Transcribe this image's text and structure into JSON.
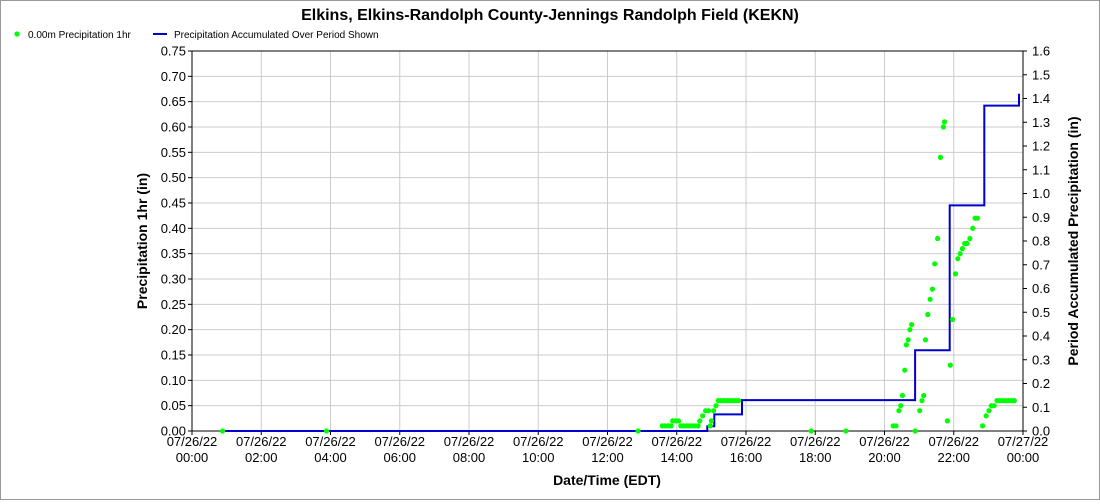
{
  "chart_data": {
    "type": "line",
    "title": "Elkins, Elkins-Randolph County-Jennings Randolph Field (KEKN)",
    "xlabel": "Date/Time (EDT)",
    "ylabel": "Precipitation 1hr (in)",
    "y2label": "Period Accumulated Precipitation (in)",
    "xlim": [
      "07/26/22 00:00",
      "07/27/22 00:00"
    ],
    "ylim": [
      0,
      0.75
    ],
    "y2lim": [
      0,
      1.6
    ],
    "grid": true,
    "legend_position": "top-left",
    "x_ticks": [
      {
        "date": "07/26/22",
        "time": "00:00"
      },
      {
        "date": "07/26/22",
        "time": "02:00"
      },
      {
        "date": "07/26/22",
        "time": "04:00"
      },
      {
        "date": "07/26/22",
        "time": "06:00"
      },
      {
        "date": "07/26/22",
        "time": "08:00"
      },
      {
        "date": "07/26/22",
        "time": "10:00"
      },
      {
        "date": "07/26/22",
        "time": "12:00"
      },
      {
        "date": "07/26/22",
        "time": "14:00"
      },
      {
        "date": "07/26/22",
        "time": "16:00"
      },
      {
        "date": "07/26/22",
        "time": "18:00"
      },
      {
        "date": "07/26/22",
        "time": "20:00"
      },
      {
        "date": "07/26/22",
        "time": "22:00"
      },
      {
        "date": "07/27/22",
        "time": "00:00"
      }
    ],
    "y_ticks": [
      "0.00",
      "0.05",
      "0.10",
      "0.15",
      "0.20",
      "0.25",
      "0.30",
      "0.35",
      "0.40",
      "0.45",
      "0.50",
      "0.55",
      "0.60",
      "0.65",
      "0.70",
      "0.75"
    ],
    "y2_ticks": [
      "0.0",
      "0.1",
      "0.2",
      "0.3",
      "0.4",
      "0.5",
      "0.6",
      "0.7",
      "0.8",
      "0.9",
      "1.0",
      "1.1",
      "1.2",
      "1.3",
      "1.4",
      "1.5",
      "1.6"
    ],
    "series": [
      {
        "name": "0.00m Precipitation 1hr",
        "kind": "scatter",
        "axis": "left",
        "color": "#00ff00",
        "points": [
          [
            "07/26/22 00:53",
            0.0
          ],
          [
            "07/26/22 03:53",
            0.0
          ],
          [
            "07/26/22 12:53",
            0.0
          ],
          [
            "07/26/22 13:35",
            0.01
          ],
          [
            "07/26/22 13:40",
            0.01
          ],
          [
            "07/26/22 13:45",
            0.01
          ],
          [
            "07/26/22 13:50",
            0.01
          ],
          [
            "07/26/22 13:53",
            0.02
          ],
          [
            "07/26/22 13:58",
            0.02
          ],
          [
            "07/26/22 14:03",
            0.02
          ],
          [
            "07/26/22 14:07",
            0.01
          ],
          [
            "07/26/22 14:12",
            0.01
          ],
          [
            "07/26/22 14:17",
            0.01
          ],
          [
            "07/26/22 14:22",
            0.01
          ],
          [
            "07/26/22 14:27",
            0.01
          ],
          [
            "07/26/22 14:32",
            0.01
          ],
          [
            "07/26/22 14:37",
            0.01
          ],
          [
            "07/26/22 14:40",
            0.02
          ],
          [
            "07/26/22 14:45",
            0.03
          ],
          [
            "07/26/22 14:50",
            0.04
          ],
          [
            "07/26/22 14:55",
            0.04
          ],
          [
            "07/26/22 14:58",
            0.01
          ],
          [
            "07/26/22 15:00",
            0.02
          ],
          [
            "07/26/22 15:04",
            0.04
          ],
          [
            "07/26/22 15:08",
            0.05
          ],
          [
            "07/26/22 15:12",
            0.06
          ],
          [
            "07/26/22 15:17",
            0.06
          ],
          [
            "07/26/22 15:22",
            0.06
          ],
          [
            "07/26/22 15:27",
            0.06
          ],
          [
            "07/26/22 15:32",
            0.06
          ],
          [
            "07/26/22 15:37",
            0.06
          ],
          [
            "07/26/22 15:42",
            0.06
          ],
          [
            "07/26/22 15:47",
            0.06
          ],
          [
            "07/26/22 17:53",
            0.0
          ],
          [
            "07/26/22 18:53",
            0.0
          ],
          [
            "07/26/22 20:15",
            0.01
          ],
          [
            "07/26/22 20:20",
            0.01
          ],
          [
            "07/26/22 20:25",
            0.04
          ],
          [
            "07/26/22 20:28",
            0.05
          ],
          [
            "07/26/22 20:31",
            0.07
          ],
          [
            "07/26/22 20:35",
            0.12
          ],
          [
            "07/26/22 20:38",
            0.17
          ],
          [
            "07/26/22 20:41",
            0.18
          ],
          [
            "07/26/22 20:44",
            0.2
          ],
          [
            "07/26/22 20:47",
            0.21
          ],
          [
            "07/26/22 20:53",
            0.0
          ],
          [
            "07/26/22 21:01",
            0.04
          ],
          [
            "07/26/22 21:05",
            0.06
          ],
          [
            "07/26/22 21:08",
            0.07
          ],
          [
            "07/26/22 21:11",
            0.18
          ],
          [
            "07/26/22 21:15",
            0.23
          ],
          [
            "07/26/22 21:19",
            0.26
          ],
          [
            "07/26/22 21:23",
            0.28
          ],
          [
            "07/26/22 21:27",
            0.33
          ],
          [
            "07/26/22 21:32",
            0.38
          ],
          [
            "07/26/22 21:37",
            0.54
          ],
          [
            "07/26/22 21:42",
            0.6
          ],
          [
            "07/26/22 21:44",
            0.61
          ],
          [
            "07/26/22 21:49",
            0.02
          ],
          [
            "07/26/22 21:54",
            0.13
          ],
          [
            "07/26/22 21:58",
            0.22
          ],
          [
            "07/26/22 22:03",
            0.31
          ],
          [
            "07/26/22 22:07",
            0.34
          ],
          [
            "07/26/22 22:11",
            0.35
          ],
          [
            "07/26/22 22:15",
            0.36
          ],
          [
            "07/26/22 22:19",
            0.37
          ],
          [
            "07/26/22 22:23",
            0.37
          ],
          [
            "07/26/22 22:28",
            0.38
          ],
          [
            "07/26/22 22:33",
            0.4
          ],
          [
            "07/26/22 22:37",
            0.42
          ],
          [
            "07/26/22 22:41",
            0.42
          ],
          [
            "07/26/22 22:50",
            0.01
          ],
          [
            "07/26/22 22:56",
            0.03
          ],
          [
            "07/26/22 23:01",
            0.04
          ],
          [
            "07/26/22 23:05",
            0.05
          ],
          [
            "07/26/22 23:10",
            0.05
          ],
          [
            "07/26/22 23:15",
            0.06
          ],
          [
            "07/26/22 23:20",
            0.06
          ],
          [
            "07/26/22 23:25",
            0.06
          ],
          [
            "07/26/22 23:30",
            0.06
          ],
          [
            "07/26/22 23:35",
            0.06
          ],
          [
            "07/26/22 23:40",
            0.06
          ],
          [
            "07/26/22 23:45",
            0.06
          ]
        ]
      },
      {
        "name": "Precipitation Accumulated Over Period Shown",
        "kind": "step-line",
        "axis": "right",
        "color": "#0000cc",
        "points": [
          [
            "07/26/22 00:53",
            0.0
          ],
          [
            "07/26/22 14:53",
            0.0
          ],
          [
            "07/26/22 14:53",
            0.02
          ],
          [
            "07/26/22 15:05",
            0.02
          ],
          [
            "07/26/22 15:05",
            0.07
          ],
          [
            "07/26/22 15:53",
            0.07
          ],
          [
            "07/26/22 15:53",
            0.13
          ],
          [
            "07/26/22 20:53",
            0.13
          ],
          [
            "07/26/22 20:53",
            0.34
          ],
          [
            "07/26/22 21:53",
            0.34
          ],
          [
            "07/26/22 21:53",
            0.95
          ],
          [
            "07/26/22 22:53",
            0.95
          ],
          [
            "07/26/22 22:53",
            1.37
          ],
          [
            "07/26/22 23:53",
            1.37
          ],
          [
            "07/26/22 23:53",
            1.42
          ]
        ]
      }
    ]
  }
}
